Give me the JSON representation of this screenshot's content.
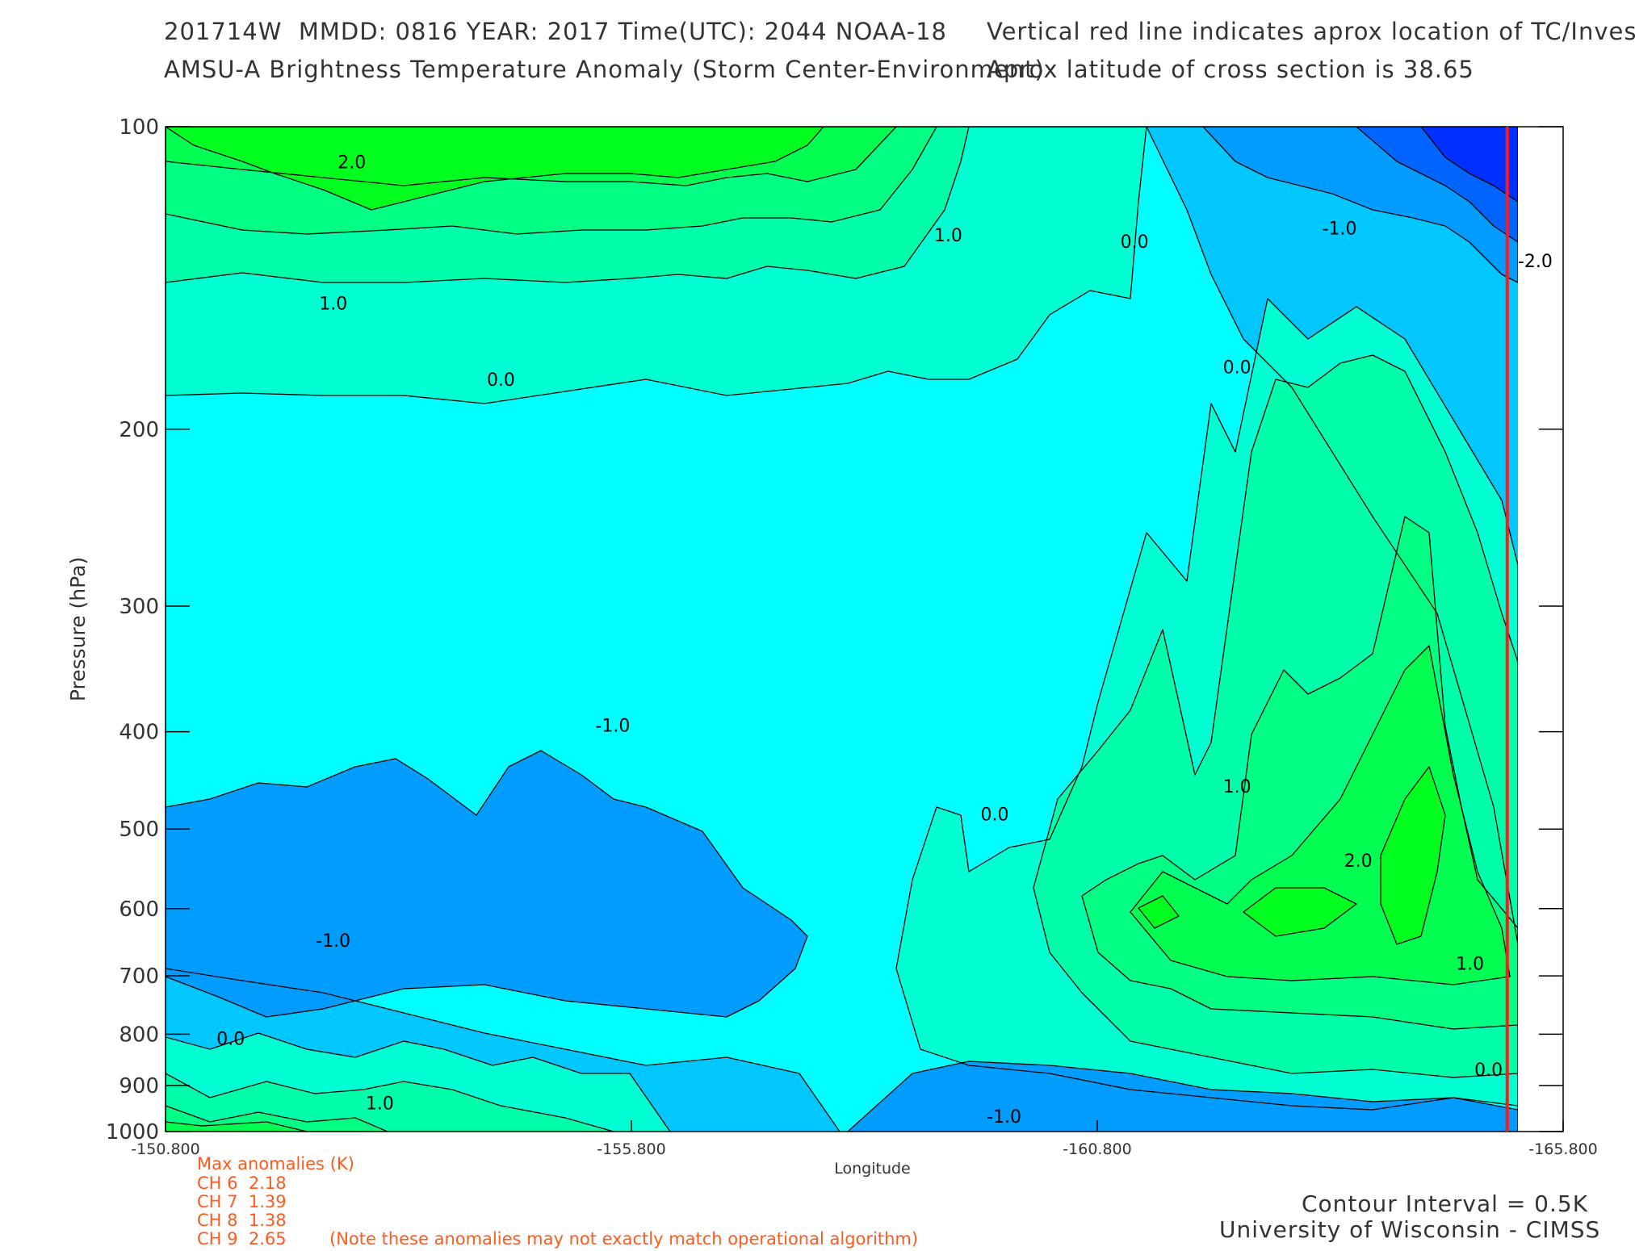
{
  "header": {
    "line1_left": "201714W  MMDD: 0816 YEAR: 2017 Time(UTC): 2044 NOAA-18",
    "line2_left": "AMSU-A Brightness Temperature Anomaly (Storm Center-Environment)",
    "line1_right": "Vertical red line indicates aprox location of TC/Invest",
    "line2_right": "Aprox latitude of cross section is 38.65"
  },
  "footer": {
    "max_title": "Max anomalies (K)",
    "channels": [
      {
        "label": "CH 6  2.18"
      },
      {
        "label": "CH 7  1.39"
      },
      {
        "label": "CH 8  1.38"
      },
      {
        "label": "CH 9  2.65"
      }
    ],
    "note": "(Note these anomalies may not exactly match operational algorithm)",
    "contour_interval": "Contour Interval = 0.5K",
    "institution": "University of Wisconsin - CIMSS"
  },
  "colors": {
    "lt_neg2": "#0030ff",
    "neg2_to_neg1_5": "#0064ff",
    "neg1_5_to_neg1": "#009cff",
    "neg1_to_neg0_5": "#00c8ff",
    "neg0_5_to_0": "#00ffff",
    "0_to_0_5": "#00ffd2",
    "0_5_to_1": "#00ffaa",
    "1_to_1_5": "#00ff82",
    "1_5_to_2": "#00ff50",
    "2_to_2_5": "#00ff1e",
    "marker": "#ff1a1a"
  },
  "chart_data": {
    "type": "contour",
    "xlabel": "Longitude",
    "ylabel": "Pressure (hPa)",
    "xlim": [
      -150.8,
      -165.8
    ],
    "ylim": [
      1000,
      100
    ],
    "y_scale": "log",
    "x_ticks": [
      "-150.800",
      "-155.800",
      "-160.800",
      "-165.800"
    ],
    "y_ticks": [
      "100",
      "200",
      "300",
      "400",
      "500",
      "600",
      "700",
      "800",
      "900",
      "1000"
    ],
    "contour_interval": 0.5,
    "storm_center_longitude": -165.2,
    "contour_labels": [
      {
        "text": "2.0",
        "x": -152.8,
        "y": 110
      },
      {
        "text": "1.0",
        "x": -159.2,
        "y": 130
      },
      {
        "text": "0.0",
        "x": -161.2,
        "y": 132
      },
      {
        "text": "-1.0",
        "x": -163.4,
        "y": 128
      },
      {
        "text": "-2.0",
        "x": -165.5,
        "y": 138
      },
      {
        "text": "1.0",
        "x": -152.6,
        "y": 152
      },
      {
        "text": "0.0",
        "x": -154.4,
        "y": 181
      },
      {
        "text": "0.0",
        "x": -162.3,
        "y": 176
      },
      {
        "text": "-1.0",
        "x": -155.6,
        "y": 400
      },
      {
        "text": "0.0",
        "x": -159.7,
        "y": 490
      },
      {
        "text": "1.0",
        "x": -162.3,
        "y": 460
      },
      {
        "text": "2.0",
        "x": -163.6,
        "y": 545
      },
      {
        "text": "-1.0",
        "x": -152.6,
        "y": 655
      },
      {
        "text": "1.0",
        "x": -164.8,
        "y": 690
      },
      {
        "text": "0.0",
        "x": -151.5,
        "y": 820
      },
      {
        "text": "0.0",
        "x": -165.0,
        "y": 880
      },
      {
        "text": "1.0",
        "x": -153.1,
        "y": 950
      },
      {
        "text": "-1.0",
        "x": -159.8,
        "y": 980
      }
    ]
  }
}
